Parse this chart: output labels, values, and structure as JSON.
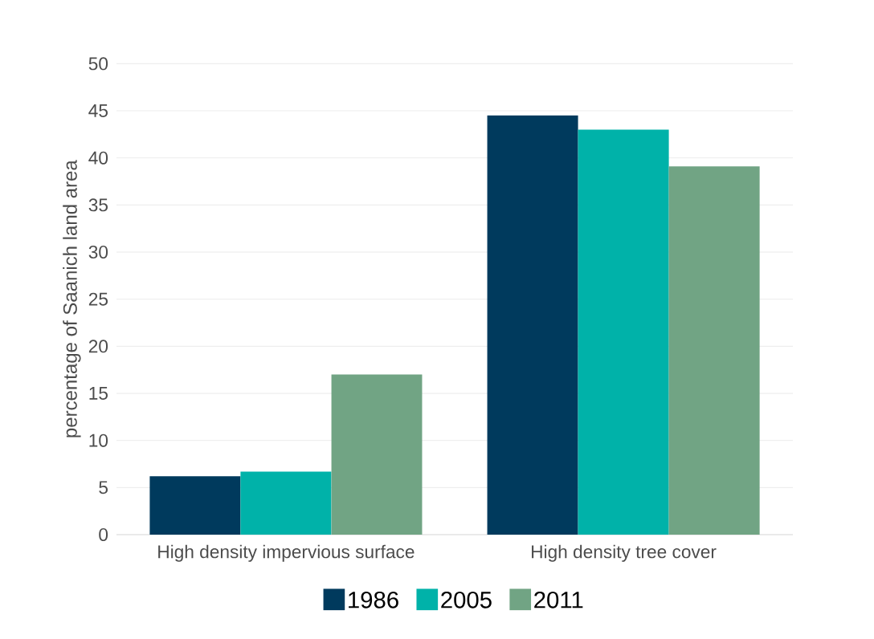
{
  "chart_data": {
    "type": "bar",
    "ylabel": "percentage of Saanich land area",
    "categories": [
      "High density impervious surface",
      "High density tree cover"
    ],
    "series": [
      {
        "name": "1986",
        "color": "#003a5d",
        "values": [
          6.2,
          44.5
        ]
      },
      {
        "name": "2005",
        "color": "#00b2a9",
        "values": [
          6.7,
          43.0
        ]
      },
      {
        "name": "2011",
        "color": "#71a484",
        "values": [
          17.0,
          39.1
        ]
      }
    ],
    "ylim": [
      0,
      50
    ],
    "yticks": [
      0,
      5,
      10,
      15,
      20,
      25,
      30,
      35,
      40,
      45,
      50
    ],
    "grid": "y",
    "legend": "bottom"
  }
}
